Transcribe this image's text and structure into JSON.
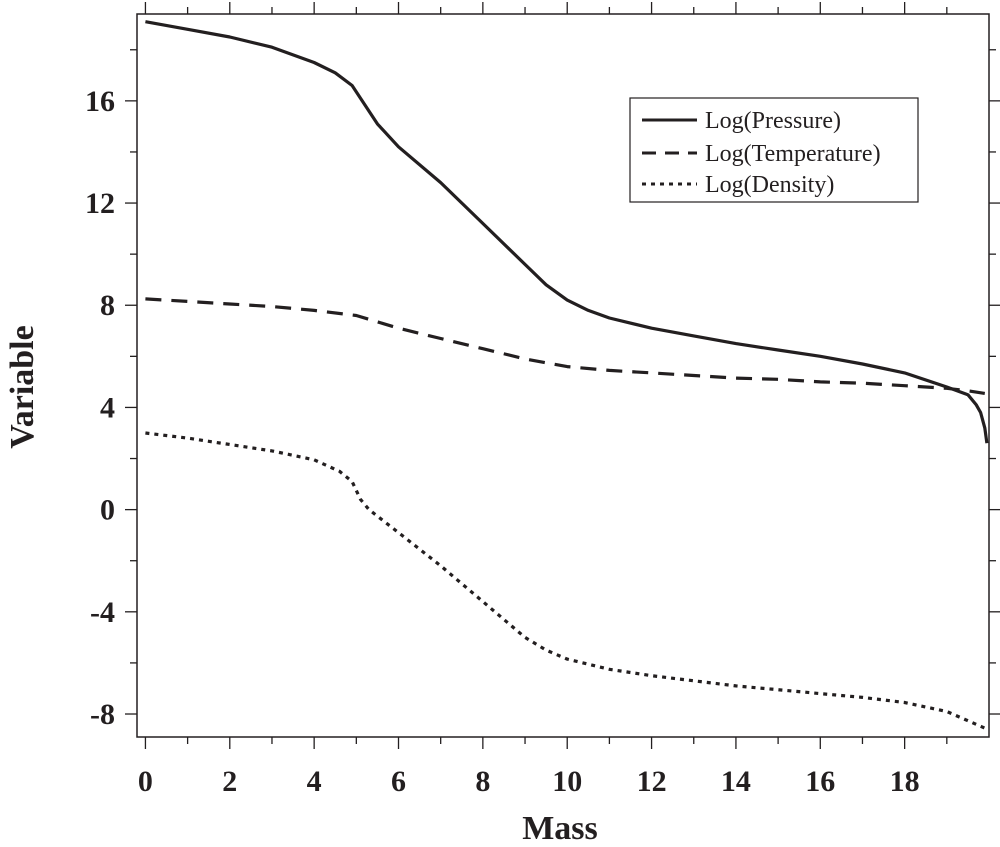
{
  "chart_data": {
    "type": "line",
    "xlabel": "Mass",
    "ylabel": "Variable",
    "xlim": [
      -0.2,
      20.0
    ],
    "ylim": [
      -8.9,
      19.4
    ],
    "xticks": [
      0,
      2,
      4,
      6,
      8,
      10,
      12,
      14,
      16,
      18
    ],
    "yticks": [
      -8,
      -4,
      0,
      4,
      8,
      12,
      16
    ],
    "xtick_labels": [
      "0",
      "2",
      "4",
      "6",
      "8",
      "10",
      "12",
      "14",
      "16",
      "18"
    ],
    "ytick_labels": [
      "-8",
      "-4",
      "0",
      "4",
      "8",
      "12",
      "16"
    ],
    "grid": false,
    "legend_position": "top-right",
    "series": [
      {
        "name": "Log(Pressure)",
        "style": "solid",
        "color": "#231f20",
        "x": [
          0,
          1,
          2,
          3,
          4,
          4.5,
          4.9,
          5.1,
          5.5,
          6,
          7,
          8,
          9,
          9.5,
          10,
          10.5,
          11,
          12,
          13,
          14,
          15,
          16,
          17,
          18,
          19,
          19.5,
          19.7,
          19.8,
          19.9,
          19.95
        ],
        "y": [
          19.1,
          18.8,
          18.5,
          18.1,
          17.5,
          17.1,
          16.6,
          16.1,
          15.1,
          14.2,
          12.8,
          11.2,
          9.6,
          8.8,
          8.2,
          7.8,
          7.5,
          7.1,
          6.8,
          6.5,
          6.25,
          6.0,
          5.7,
          5.35,
          4.8,
          4.5,
          4.1,
          3.8,
          3.2,
          2.6
        ]
      },
      {
        "name": "Log(Temperature)",
        "style": "dashed",
        "color": "#231f20",
        "x": [
          0,
          1,
          2,
          3,
          4,
          5,
          6,
          7,
          8,
          9,
          10,
          11,
          12,
          13,
          14,
          15,
          16,
          17,
          18,
          19,
          19.5,
          19.9
        ],
        "y": [
          8.25,
          8.15,
          8.05,
          7.95,
          7.8,
          7.6,
          7.1,
          6.7,
          6.3,
          5.9,
          5.6,
          5.45,
          5.35,
          5.25,
          5.15,
          5.1,
          5.0,
          4.95,
          4.85,
          4.75,
          4.65,
          4.55
        ]
      },
      {
        "name": "Log(Density)",
        "style": "dotted",
        "color": "#231f20",
        "x": [
          0,
          1,
          2,
          3,
          4,
          4.6,
          4.9,
          5.1,
          5.3,
          6,
          7,
          8,
          9,
          9.5,
          10,
          11,
          12,
          13,
          14,
          15,
          16,
          17,
          18,
          19,
          19.9
        ],
        "y": [
          3.0,
          2.8,
          2.55,
          2.3,
          1.95,
          1.5,
          1.1,
          0.4,
          0.0,
          -0.9,
          -2.2,
          -3.6,
          -5.0,
          -5.5,
          -5.85,
          -6.25,
          -6.5,
          -6.7,
          -6.9,
          -7.05,
          -7.2,
          -7.35,
          -7.55,
          -7.9,
          -8.55
        ]
      }
    ]
  }
}
